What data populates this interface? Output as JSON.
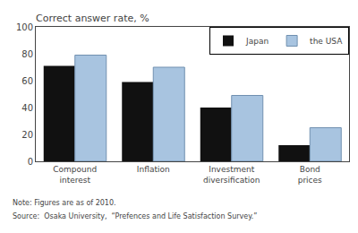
{
  "chart_data": {
    "type": "bar",
    "title": "Correct answer rate, %",
    "categories": [
      "Compound\ninterest",
      "Inflation",
      "Investment\ndiversification",
      "Bond\nprices"
    ],
    "series": [
      {
        "name": "Japan",
        "color": "#111111",
        "values": [
          71,
          59,
          40,
          12
        ]
      },
      {
        "name": "the USA",
        "color": "#a8c4e0",
        "values": [
          79,
          70,
          49,
          25
        ]
      }
    ],
    "ylim": [
      0,
      100
    ],
    "yticks": [
      0,
      20,
      40,
      60,
      80,
      100
    ],
    "grid": false,
    "legend": "upper right",
    "annotations": [
      "Note: Figures are as of 2010.",
      "Source:  Osaka University,  “Prefences and Life Satisfaction Survey.”"
    ]
  }
}
